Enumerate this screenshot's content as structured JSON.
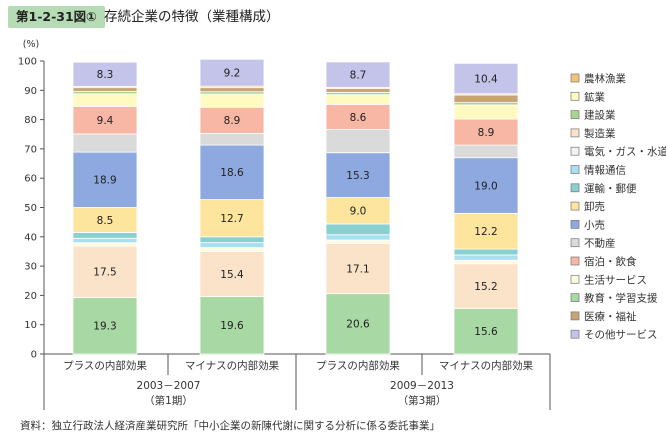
{
  "figure": {
    "label": "第1-2-31図①",
    "title": "存続企業の特徴（業種構成）",
    "source": "資料：独立行政法人経済産業研究所「中小企業の新陳代謝に関する分析に係る委託事業」"
  },
  "chart_data": {
    "type": "bar",
    "stacked": true,
    "ylabel": "(%)",
    "ylim": [
      0,
      100
    ],
    "yticks": [
      0,
      10,
      20,
      30,
      40,
      50,
      60,
      70,
      80,
      90,
      100
    ],
    "grid": false,
    "legend_position": "right",
    "categories": [
      "プラスの内部効果",
      "マイナスの内部効果",
      "プラスの内部効果",
      "マイナスの内部効果"
    ],
    "groups": [
      {
        "label": "2003－2007",
        "sublabel": "（第1期）",
        "span": [
          0,
          1
        ]
      },
      {
        "label": "2009－2013",
        "sublabel": "（第3期）",
        "span": [
          2,
          3
        ]
      }
    ],
    "series": [
      {
        "name": "教育・学習支援",
        "color": "#a8d8a4",
        "values": [
          19.3,
          19.6,
          20.6,
          15.6
        ],
        "labeled": true
      },
      {
        "name": "製造業",
        "color": "#fbe3c9",
        "values": [
          17.5,
          15.4,
          17.1,
          15.2
        ],
        "labeled": true
      },
      {
        "name": "生活サービス",
        "color": "#fffbe0",
        "values": [
          1.2,
          1.3,
          1.2,
          1.2
        ],
        "labeled": false
      },
      {
        "name": "情報通信",
        "color": "#a9dff0",
        "values": [
          1.5,
          1.7,
          1.8,
          1.8
        ],
        "labeled": false
      },
      {
        "name": "運輸・郵便",
        "color": "#8ad0d0",
        "values": [
          2.0,
          2.0,
          3.7,
          2.0
        ],
        "labeled": false
      },
      {
        "name": "卸売",
        "color": "#fee59e",
        "values": [
          8.5,
          12.7,
          9.0,
          12.2
        ],
        "labeled": true
      },
      {
        "name": "小売",
        "color": "#8ea8e0",
        "values": [
          18.9,
          18.6,
          15.3,
          19.0
        ],
        "labeled": true
      },
      {
        "name": "不動産",
        "color": "#dadada",
        "values": [
          6.2,
          4.0,
          7.9,
          4.3
        ],
        "labeled": false
      },
      {
        "name": "宿泊・飲食",
        "color": "#f8b6a4",
        "values": [
          9.4,
          8.9,
          8.6,
          8.9
        ],
        "labeled": true
      },
      {
        "name": "鉱業",
        "color": "#fffac0",
        "values": [
          4.3,
          4.5,
          3.3,
          4.8
        ],
        "labeled": false
      },
      {
        "name": "建設業",
        "color": "#a7d48e",
        "values": [
          0.8,
          0.8,
          0.8,
          0.8
        ],
        "labeled": false
      },
      {
        "name": "医療・福祉",
        "color": "#c9a474",
        "values": [
          1.3,
          1.4,
          1.3,
          2.6
        ],
        "labeled": false
      },
      {
        "name": "農林漁業",
        "color": "#f4c277",
        "values": [
          0.4,
          0.5,
          0.4,
          0.4
        ],
        "labeled": false
      },
      {
        "name": "その他サービス",
        "color": "#c4c3e9",
        "values": [
          8.3,
          9.2,
          8.7,
          10.4
        ],
        "labeled": true
      }
    ],
    "legend": [
      {
        "name": "農林漁業",
        "color": "#f4c277"
      },
      {
        "name": "鉱業",
        "color": "#fffac0"
      },
      {
        "name": "建設業",
        "color": "#a7d48e"
      },
      {
        "name": "製造業",
        "color": "#fbe3c9"
      },
      {
        "name": "電気・ガス・水道",
        "color": "#f2f2f2"
      },
      {
        "name": "情報通信",
        "color": "#a9dff0"
      },
      {
        "name": "運輸・郵便",
        "color": "#8ad0d0"
      },
      {
        "name": "卸売",
        "color": "#fee59e"
      },
      {
        "name": "小売",
        "color": "#8ea8e0"
      },
      {
        "name": "不動産",
        "color": "#dadada"
      },
      {
        "name": "宿泊・飲食",
        "color": "#f8b6a4"
      },
      {
        "name": "生活サービス",
        "color": "#fffbe0"
      },
      {
        "name": "教育・学習支援",
        "color": "#a8d8a4"
      },
      {
        "name": "医療・福祉",
        "color": "#c9a474"
      },
      {
        "name": "その他サービス",
        "color": "#c4c3e9"
      }
    ]
  }
}
